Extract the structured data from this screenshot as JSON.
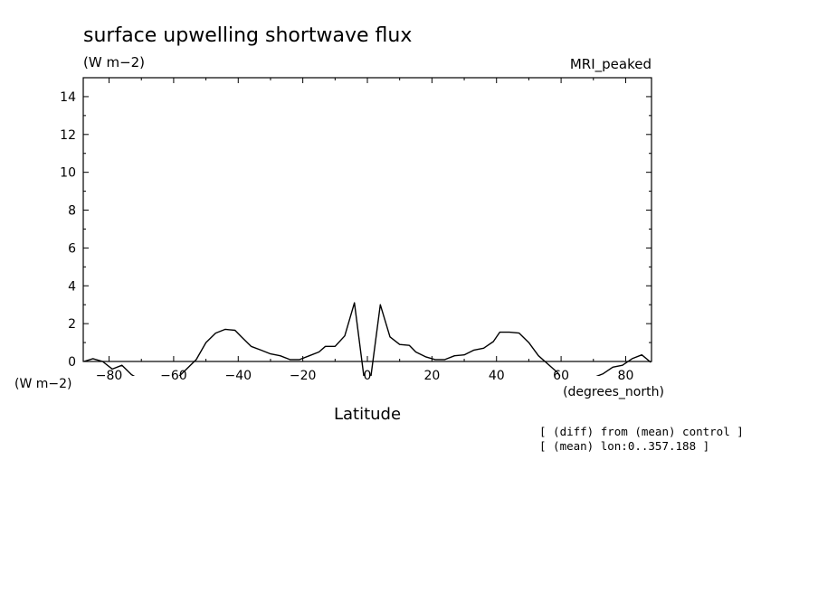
{
  "chart_data": {
    "type": "line",
    "title": "surface upwelling shortwave flux",
    "units": "(W m−2)",
    "model_label": "MRI_peaked",
    "y_axis_units_label": "(W m−2)",
    "x_axis_units_label": "(degrees_north)",
    "xlabel": "Latitude",
    "ylabel": "",
    "xlim": [
      -88,
      88
    ],
    "ylim": [
      0,
      15
    ],
    "x_ticks": [
      -80,
      -60,
      -40,
      -20,
      0,
      20,
      40,
      60,
      80
    ],
    "x_tick_labels": [
      "−80",
      "−60",
      "−40",
      "−20",
      "0",
      "20",
      "40",
      "60",
      "80"
    ],
    "y_ticks": [
      0,
      2,
      4,
      6,
      8,
      10,
      12,
      14
    ],
    "y_tick_labels": [
      "0",
      "2",
      "4",
      "6",
      "8",
      "10",
      "12",
      "14"
    ],
    "grid": false,
    "notes": [
      "[ (diff) from (mean) control ]",
      "[ (mean) lon:0..357.188 ]"
    ],
    "series": [
      {
        "color": "#000000",
        "x": [
          -87.8,
          -85,
          -82,
          -79,
          -76,
          -73,
          -70,
          -67,
          -64,
          -61,
          -59,
          -56,
          -53,
          -50,
          -47,
          -44,
          -41,
          -39,
          -36,
          -33,
          -30,
          -27,
          -24,
          -21,
          -18,
          -15,
          -13,
          -10,
          -7,
          -4,
          -1,
          1,
          4,
          7,
          10,
          13,
          15,
          18,
          21,
          24,
          27,
          30,
          33,
          36,
          39,
          41,
          44,
          47,
          50,
          53,
          56,
          59,
          61,
          64,
          67,
          70,
          73,
          76,
          79,
          82,
          85,
          87.8
        ],
        "y": [
          0.0,
          0.15,
          0.0,
          -0.4,
          -0.2,
          -0.7,
          -1.0,
          -1.0,
          -1.4,
          -1.4,
          -0.9,
          -0.4,
          0.1,
          1.0,
          1.5,
          1.7,
          1.65,
          1.3,
          0.8,
          0.6,
          0.4,
          0.3,
          0.1,
          0.1,
          0.3,
          0.5,
          0.8,
          0.8,
          1.35,
          3.1,
          -0.9,
          -0.9,
          3.0,
          1.3,
          0.9,
          0.85,
          0.5,
          0.25,
          0.1,
          0.1,
          0.3,
          0.35,
          0.6,
          0.7,
          1.05,
          1.55,
          1.55,
          1.5,
          1.0,
          0.3,
          -0.15,
          -0.6,
          -1.15,
          -1.1,
          -0.8,
          -0.85,
          -0.65,
          -0.3,
          -0.2,
          0.15,
          0.35,
          -0.05
        ]
      }
    ]
  }
}
